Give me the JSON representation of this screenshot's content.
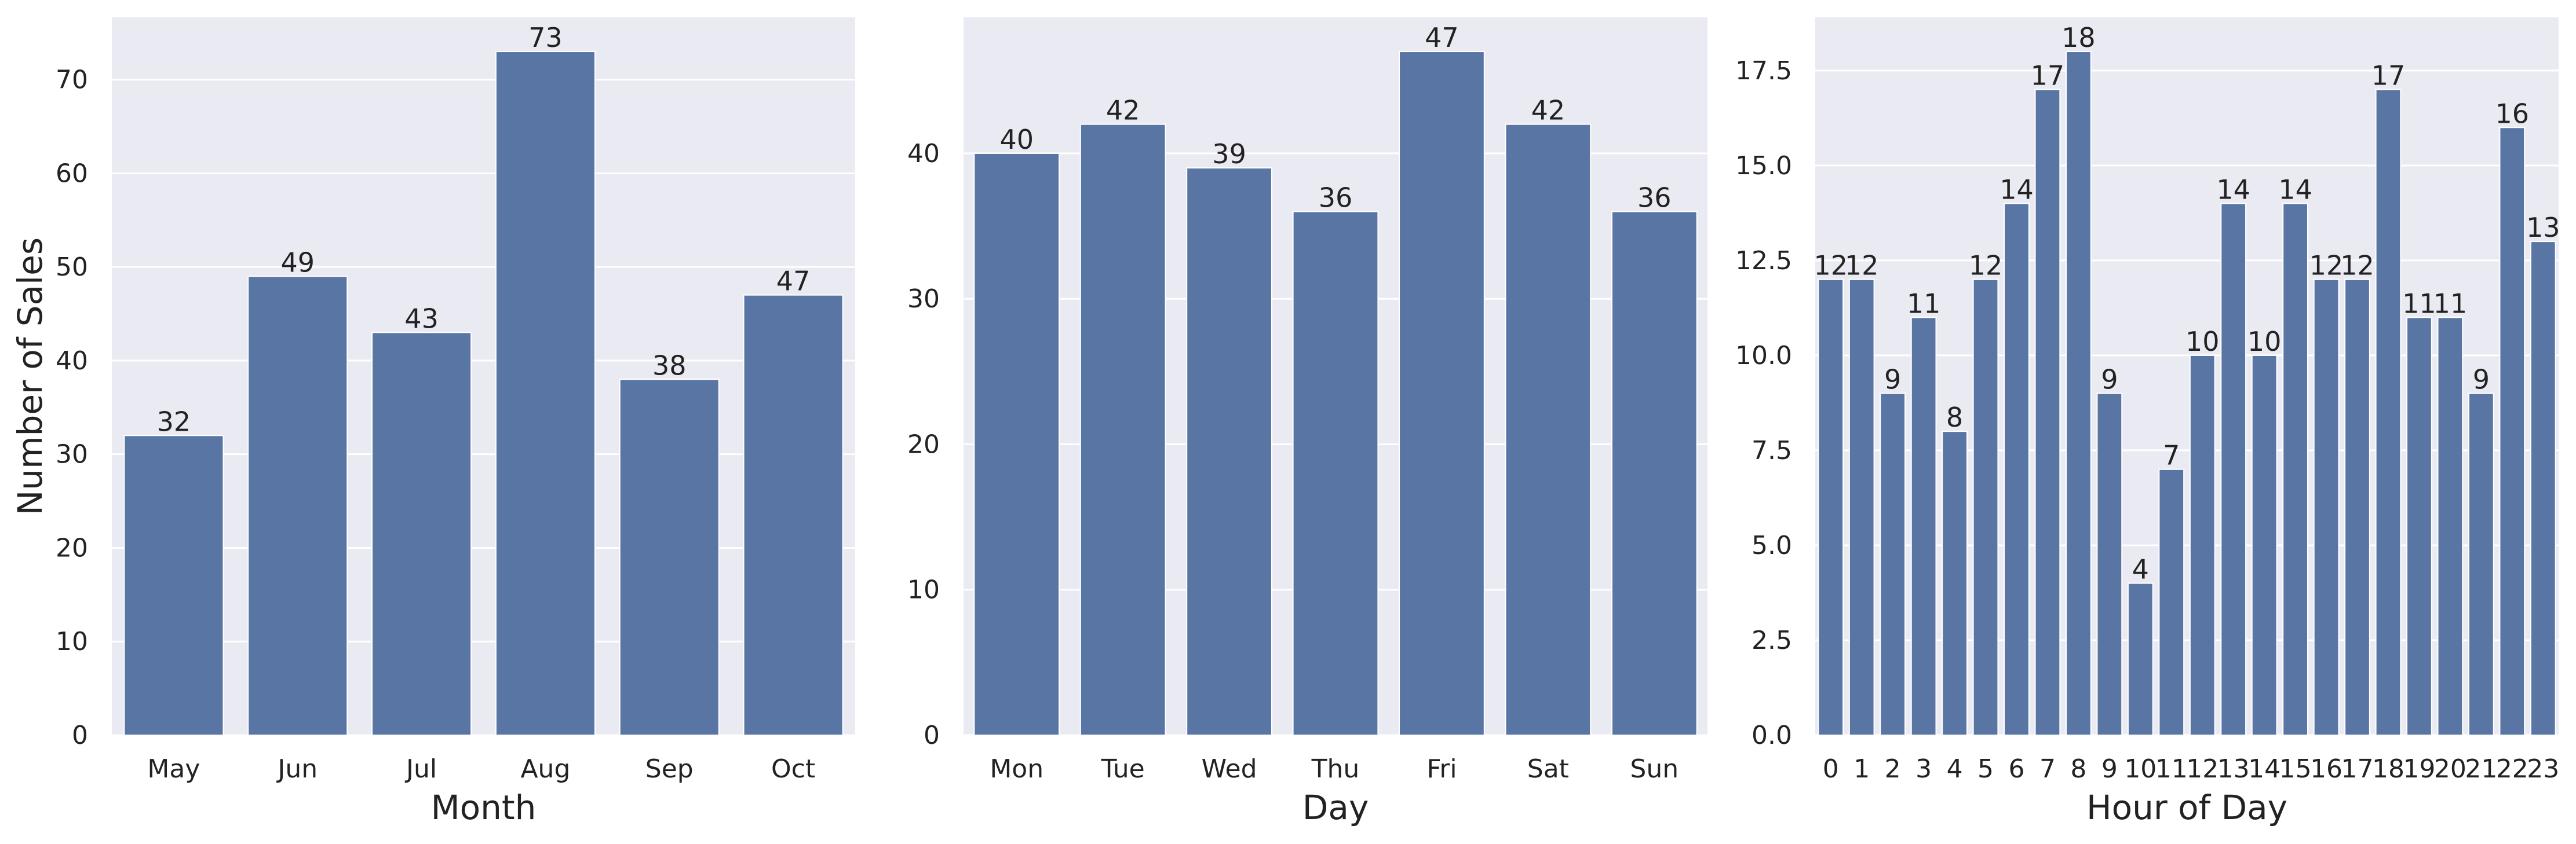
{
  "colors": {
    "bar": "#5875a4",
    "panel_bg": "#eaeaf2",
    "grid": "#ffffff",
    "text": "#222222"
  },
  "chart_data": [
    {
      "type": "bar",
      "title": "",
      "xlabel": "Month",
      "ylabel": "Number of Sales",
      "categories": [
        "May",
        "Jun",
        "Jul",
        "Aug",
        "Sep",
        "Oct"
      ],
      "values": [
        32,
        49,
        43,
        73,
        38,
        47
      ],
      "ylim": [
        0,
        76.65
      ],
      "yticks": [
        "0",
        "10",
        "20",
        "30",
        "40",
        "50",
        "60",
        "70"
      ],
      "grid": true,
      "data_labels": true
    },
    {
      "type": "bar",
      "title": "",
      "xlabel": "Day",
      "ylabel": "",
      "categories": [
        "Mon",
        "Tue",
        "Wed",
        "Thu",
        "Fri",
        "Sat",
        "Sun"
      ],
      "values": [
        40,
        42,
        39,
        36,
        47,
        42,
        36
      ],
      "ylim": [
        0,
        49.35
      ],
      "yticks": [
        "0",
        "10",
        "20",
        "30",
        "40"
      ],
      "grid": true,
      "data_labels": true
    },
    {
      "type": "bar",
      "title": "",
      "xlabel": "Hour of Day",
      "ylabel": "",
      "categories": [
        "0",
        "1",
        "2",
        "3",
        "4",
        "5",
        "6",
        "7",
        "8",
        "9",
        "10",
        "11",
        "12",
        "13",
        "14",
        "15",
        "16",
        "17",
        "18",
        "19",
        "20",
        "21",
        "22",
        "23"
      ],
      "values": [
        12,
        12,
        9,
        11,
        8,
        12,
        14,
        17,
        18,
        9,
        4,
        7,
        10,
        14,
        10,
        14,
        12,
        12,
        17,
        11,
        11,
        9,
        16,
        13
      ],
      "ylim": [
        0,
        18.9
      ],
      "yticks": [
        "0.0",
        "2.5",
        "5.0",
        "7.5",
        "10.0",
        "12.5",
        "15.0",
        "17.5"
      ],
      "grid": true,
      "data_labels": true
    }
  ]
}
